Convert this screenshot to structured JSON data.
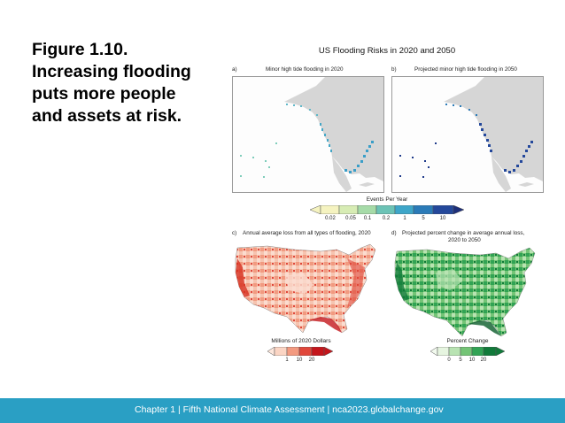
{
  "caption": {
    "line1": "Figure 1.10.",
    "line2": "Increasing flooding",
    "line3": "puts more people",
    "line4": "and assets at risk."
  },
  "figure": {
    "title": "US Flooding Risks in 2020 and 2050",
    "panel_a": {
      "letter": "a)",
      "title": "Minor high tide flooding in 2020"
    },
    "panel_b": {
      "letter": "b)",
      "title": "Projected minor high tide flooding in 2050"
    },
    "panel_c": {
      "letter": "c)",
      "title": "Annual average loss from all types of flooding, 2020"
    },
    "panel_d": {
      "letter": "d)",
      "title_line1": "Projected percent change in average annual loss,",
      "title_line2": "2020 to 2050"
    },
    "legend_events": {
      "title": "Events Per Year",
      "ticks": [
        "0.02",
        "0.05",
        "0.1",
        "0.2",
        "1",
        "5",
        "10"
      ],
      "colors": [
        "#f5f3c0",
        "#d7ecb4",
        "#a6dba8",
        "#6cc3b6",
        "#3ea6c9",
        "#2b7bb8",
        "#24489b"
      ]
    },
    "legend_dollars": {
      "title": "Millions of 2020 Dollars",
      "ticks": [
        "1",
        "10",
        "20"
      ],
      "colors": [
        "#fbd5c4",
        "#f39a80",
        "#e0473b",
        "#c4161c"
      ]
    },
    "legend_percent": {
      "title": "Percent Change",
      "ticks": [
        "0",
        "5",
        "10",
        "20"
      ],
      "colors": [
        "#e6f5e0",
        "#b8e3b2",
        "#74c476",
        "#31a354",
        "#117a3a"
      ]
    }
  },
  "footer": {
    "text": "Chapter 1  |  Fifth National Climate Assessment  |  nca2023.globalchange.gov"
  }
}
